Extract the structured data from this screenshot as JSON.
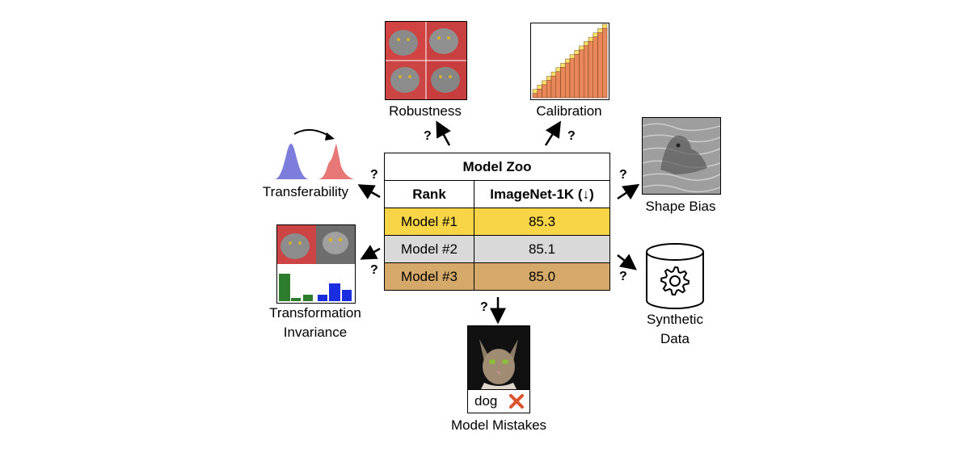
{
  "table": {
    "title": "Model Zoo",
    "headers": [
      "Rank",
      "ImageNet-1K (↓)"
    ],
    "rows": [
      {
        "model": "Model #1",
        "score": "85.3",
        "color": "#f8d447"
      },
      {
        "model": "Model #2",
        "score": "85.1",
        "color": "#d9d9d9"
      },
      {
        "model": "Model #3",
        "score": "85.0",
        "color": "#d4a969"
      }
    ]
  },
  "labels": {
    "robustness": "Robustness",
    "calibration": "Calibration",
    "transferability": "Transferability",
    "shape_bias": "Shape Bias",
    "transformation_line1": "Transformation",
    "transformation_line2": "Invariance",
    "synthetic_line1": "Synthetic",
    "synthetic_line2": "Data",
    "model_mistakes": "Model Mistakes",
    "mistake_prediction": "dog"
  },
  "question_mark": "?",
  "icons": [
    "gear-icon",
    "database-icon",
    "cross-icon",
    "cat-image",
    "histogram-icon"
  ]
}
